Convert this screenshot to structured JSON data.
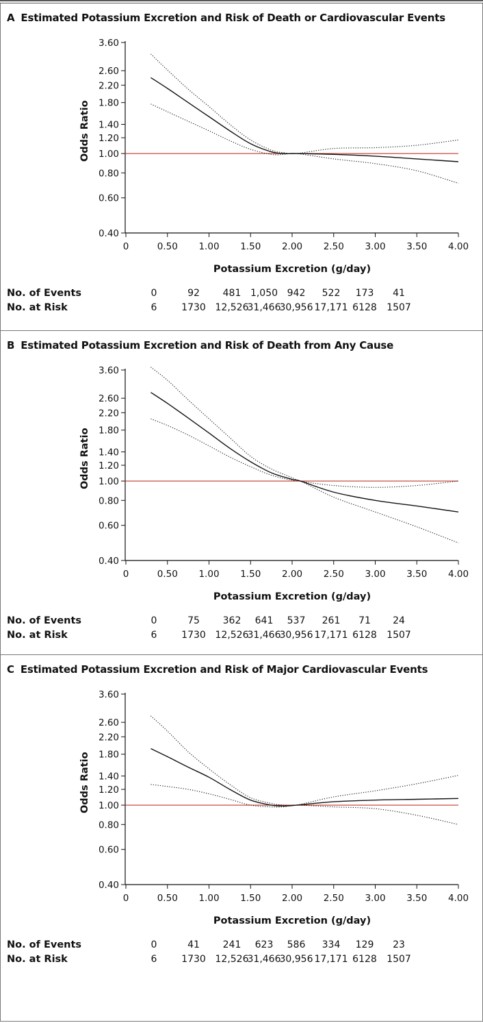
{
  "figure": {
    "panels": [
      {
        "letter": "A",
        "title": "Estimated Potassium Excretion and Risk of Death or Cardiovascular Events",
        "events_label": "No. of Events",
        "risk_label": "No. at Risk",
        "events": [
          "0",
          "92",
          "481",
          "1,050",
          "942",
          "522",
          "173",
          "41"
        ],
        "at_risk": [
          "6",
          "1730",
          "12,526",
          "31,466",
          "30,956",
          "17,171",
          "6128",
          "1507"
        ]
      },
      {
        "letter": "B",
        "title": "Estimated Potassium Excretion and Risk of Death from Any Cause",
        "events_label": "No. of Events",
        "risk_label": "No. at Risk",
        "events": [
          "0",
          "75",
          "362",
          "641",
          "537",
          "261",
          "71",
          "24"
        ],
        "at_risk": [
          "6",
          "1730",
          "12,526",
          "31,466",
          "30,956",
          "17,171",
          "6128",
          "1507"
        ]
      },
      {
        "letter": "C",
        "title": "Estimated Potassium Excretion and Risk of Major Cardiovascular Events",
        "events_label": "No. of Events",
        "risk_label": "No. at Risk",
        "events": [
          "0",
          "41",
          "241",
          "623",
          "586",
          "334",
          "129",
          "23"
        ],
        "at_risk": [
          "6",
          "1730",
          "12,526",
          "31,466",
          "30,956",
          "17,171",
          "6128",
          "1507"
        ]
      }
    ]
  },
  "chart_data": [
    {
      "type": "line",
      "title": "Estimated Potassium Excretion and Risk of Death or Cardiovascular Events",
      "xlabel": "Potassium Excretion (g/day)",
      "ylabel": "Odds Ratio",
      "y_scale": "log",
      "xlim": [
        0,
        4.0
      ],
      "ylim": [
        0.4,
        3.6
      ],
      "x_ticks": [
        "0",
        "0.50",
        "1.00",
        "1.50",
        "2.00",
        "2.50",
        "3.00",
        "3.50",
        "4.00"
      ],
      "y_ticks": [
        "0.40",
        "0.60",
        "0.80",
        "1.00",
        "1.20",
        "1.40",
        "1.80",
        "2.20",
        "2.60",
        "3.60"
      ],
      "reference_line": {
        "y": 1.0,
        "color": "#c0392b"
      },
      "series": [
        {
          "style": "solid",
          "x": [
            0.3,
            0.5,
            0.75,
            1.0,
            1.25,
            1.5,
            1.75,
            1.9,
            2.05,
            2.5,
            3.0,
            3.5,
            4.0
          ],
          "y": [
            2.4,
            2.12,
            1.8,
            1.53,
            1.3,
            1.12,
            1.02,
            1.0,
            1.0,
            0.99,
            0.97,
            0.94,
            0.91
          ]
        },
        {
          "style": "dotted",
          "x": [
            0.3,
            0.5,
            0.75,
            1.0,
            1.25,
            1.5,
            1.75,
            1.9,
            2.05,
            2.5,
            3.0,
            3.5,
            4.0
          ],
          "y": [
            3.15,
            2.62,
            2.1,
            1.72,
            1.4,
            1.17,
            1.04,
            1.01,
            1.0,
            1.06,
            1.07,
            1.1,
            1.17
          ]
        },
        {
          "style": "dotted",
          "x": [
            0.3,
            0.5,
            0.75,
            1.0,
            1.25,
            1.5,
            1.75,
            1.9,
            2.05,
            2.5,
            3.0,
            3.5,
            4.0
          ],
          "y": [
            1.77,
            1.62,
            1.45,
            1.3,
            1.16,
            1.05,
            0.99,
            0.99,
            1.0,
            0.94,
            0.89,
            0.82,
            0.71
          ]
        }
      ]
    },
    {
      "type": "line",
      "title": "Estimated Potassium Excretion and Risk of Death from Any Cause",
      "xlabel": "Potassium Excretion (g/day)",
      "ylabel": "Odds Ratio",
      "y_scale": "log",
      "xlim": [
        0,
        4.0
      ],
      "ylim": [
        0.4,
        3.6
      ],
      "x_ticks": [
        "0",
        "0.50",
        "1.00",
        "1.50",
        "2.00",
        "2.50",
        "3.00",
        "3.50",
        "4.00"
      ],
      "y_ticks": [
        "0.40",
        "0.60",
        "0.80",
        "1.00",
        "1.20",
        "1.40",
        "1.80",
        "2.20",
        "2.60",
        "3.60"
      ],
      "reference_line": {
        "y": 1.0,
        "color": "#c0392b"
      },
      "series": [
        {
          "style": "solid",
          "x": [
            0.3,
            0.5,
            0.75,
            1.0,
            1.25,
            1.5,
            1.75,
            2.0,
            2.1,
            2.5,
            3.0,
            3.5,
            4.0
          ],
          "y": [
            2.78,
            2.45,
            2.07,
            1.74,
            1.46,
            1.25,
            1.1,
            1.02,
            1.0,
            0.88,
            0.8,
            0.75,
            0.7
          ]
        },
        {
          "style": "dotted",
          "x": [
            0.3,
            0.5,
            0.75,
            1.0,
            1.25,
            1.5,
            1.75,
            2.0,
            2.1,
            2.5,
            3.0,
            3.5,
            4.0
          ],
          "y": [
            3.72,
            3.2,
            2.55,
            2.05,
            1.65,
            1.33,
            1.15,
            1.04,
            1.0,
            0.95,
            0.93,
            0.95,
            1.0
          ]
        },
        {
          "style": "dotted",
          "x": [
            0.3,
            0.5,
            0.75,
            1.0,
            1.25,
            1.5,
            1.75,
            2.0,
            2.1,
            2.5,
            3.0,
            3.5,
            4.0
          ],
          "y": [
            2.05,
            1.9,
            1.7,
            1.5,
            1.32,
            1.18,
            1.07,
            1.01,
            1.0,
            0.83,
            0.7,
            0.59,
            0.49
          ]
        }
      ]
    },
    {
      "type": "line",
      "title": "Estimated Potassium Excretion and Risk of Major Cardiovascular Events",
      "xlabel": "Potassium Excretion (g/day)",
      "ylabel": "Odds Ratio",
      "y_scale": "log",
      "xlim": [
        0,
        4.0
      ],
      "ylim": [
        0.4,
        3.6
      ],
      "x_ticks": [
        "0",
        "0.50",
        "1.00",
        "1.50",
        "2.00",
        "2.50",
        "3.00",
        "3.50",
        "4.00"
      ],
      "y_ticks": [
        "0.40",
        "0.60",
        "0.80",
        "1.00",
        "1.20",
        "1.40",
        "1.80",
        "2.20",
        "2.60",
        "3.60"
      ],
      "reference_line": {
        "y": 1.0,
        "color": "#c0392b"
      },
      "series": [
        {
          "style": "solid",
          "x": [
            0.3,
            0.5,
            0.75,
            1.0,
            1.25,
            1.5,
            1.75,
            1.9,
            2.05,
            2.5,
            3.0,
            3.5,
            4.0
          ],
          "y": [
            1.92,
            1.75,
            1.55,
            1.38,
            1.2,
            1.06,
            1.0,
            0.99,
            1.0,
            1.04,
            1.06,
            1.07,
            1.08
          ]
        },
        {
          "style": "dotted",
          "x": [
            0.3,
            0.5,
            0.75,
            1.0,
            1.25,
            1.5,
            1.75,
            1.9,
            2.05,
            2.5,
            3.0,
            3.5,
            4.0
          ],
          "y": [
            2.8,
            2.35,
            1.85,
            1.52,
            1.27,
            1.09,
            1.02,
            1.0,
            1.0,
            1.1,
            1.18,
            1.28,
            1.41
          ]
        },
        {
          "style": "dotted",
          "x": [
            0.3,
            0.5,
            0.75,
            1.0,
            1.25,
            1.5,
            1.75,
            1.9,
            2.05,
            2.5,
            3.0,
            3.5,
            4.0
          ],
          "y": [
            1.27,
            1.24,
            1.2,
            1.14,
            1.07,
            1.0,
            0.98,
            0.98,
            1.0,
            0.98,
            0.96,
            0.89,
            0.8
          ]
        }
      ]
    }
  ]
}
